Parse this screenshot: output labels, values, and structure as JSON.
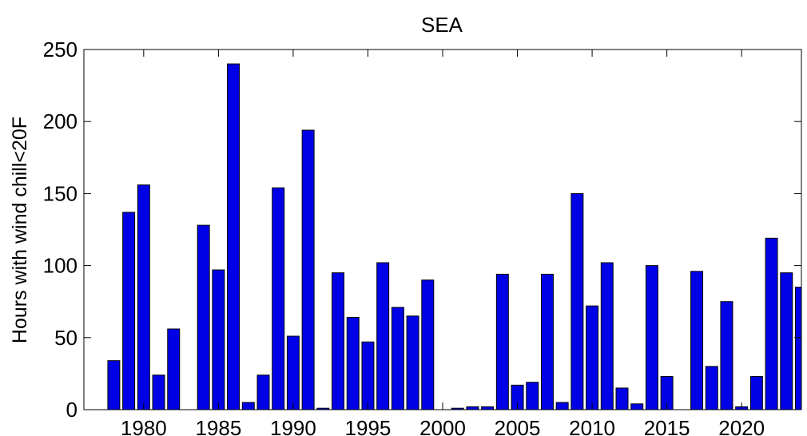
{
  "chart_data": {
    "type": "bar",
    "title": "SEA",
    "xlabel": "",
    "ylabel": "Hours with wind chill<20F",
    "xlim": [
      1976,
      2024
    ],
    "ylim": [
      0,
      250
    ],
    "xticks": [
      1980,
      1985,
      1990,
      1995,
      2000,
      2005,
      2010,
      2015,
      2020
    ],
    "yticks": [
      0,
      50,
      100,
      150,
      200,
      250
    ],
    "grid": false,
    "colors": {
      "bar": "#0000e6",
      "edge": "#000000"
    },
    "categories": [
      1978,
      1979,
      1980,
      1981,
      1982,
      1983,
      1984,
      1985,
      1986,
      1987,
      1988,
      1989,
      1990,
      1991,
      1992,
      1993,
      1994,
      1995,
      1996,
      1997,
      1998,
      1999,
      2000,
      2001,
      2002,
      2003,
      2004,
      2005,
      2006,
      2007,
      2008,
      2009,
      2010,
      2011,
      2012,
      2013,
      2014,
      2015,
      2016,
      2017,
      2018,
      2019,
      2020,
      2021,
      2022,
      2023,
      2024
    ],
    "values": [
      34,
      137,
      156,
      24,
      56,
      0,
      128,
      97,
      240,
      5,
      24,
      154,
      51,
      194,
      1,
      95,
      64,
      47,
      102,
      71,
      65,
      90,
      0,
      1,
      2,
      2,
      94,
      17,
      19,
      94,
      5,
      150,
      72,
      102,
      15,
      4,
      100,
      23,
      0,
      96,
      30,
      75,
      2,
      23,
      119,
      95,
      85
    ]
  }
}
